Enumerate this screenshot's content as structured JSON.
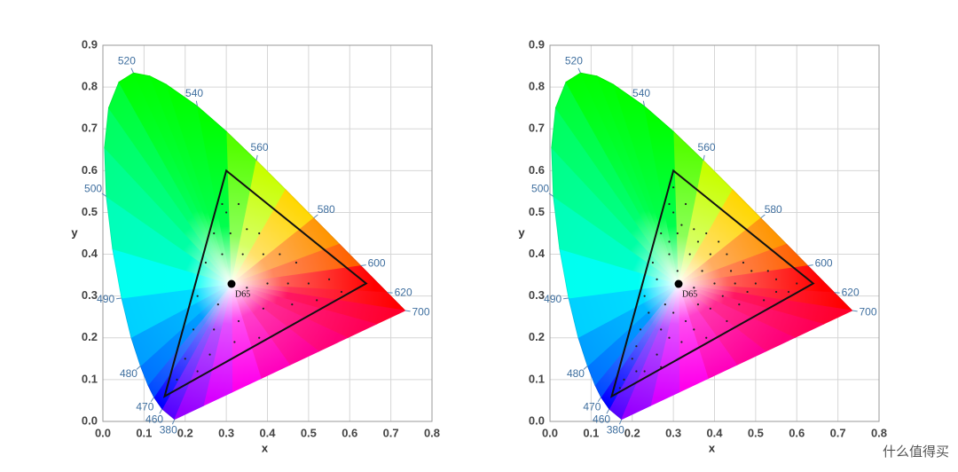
{
  "chart_data": [
    {
      "type": "chromaticity",
      "xlabel": "x",
      "ylabel": "y",
      "xlim": [
        0,
        0.8
      ],
      "ylim": [
        0,
        0.9
      ],
      "xticks": [
        {
          "value": 0,
          "label": "0.0"
        },
        0.1,
        0.2,
        0.3,
        0.4,
        0.5,
        0.6,
        0.7,
        0.8
      ],
      "yticks": [
        {
          "value": 0,
          "label": "0.0"
        },
        0.1,
        0.2,
        0.3,
        0.4,
        0.5,
        0.6,
        0.7,
        0.8,
        0.9
      ],
      "grid": true,
      "locus": {
        "x": [
          0.1741,
          0.144,
          0.1241,
          0.1096,
          0.0913,
          0.0687,
          0.0454,
          0.0235,
          0.0082,
          0.0039,
          0.0139,
          0.0389,
          0.0743,
          0.1142,
          0.1547,
          0.2296,
          0.3016,
          0.3731,
          0.4441,
          0.5125,
          0.5752,
          0.627,
          0.6915,
          0.7347
        ],
        "y": [
          0.005,
          0.0297,
          0.0578,
          0.0868,
          0.1327,
          0.2007,
          0.295,
          0.4127,
          0.5384,
          0.6548,
          0.7502,
          0.812,
          0.8338,
          0.8262,
          0.8059,
          0.7543,
          0.6923,
          0.6245,
          0.5547,
          0.4866,
          0.4242,
          0.3725,
          0.3083,
          0.2653
        ]
      },
      "wavelength_labels": {
        "labels": [
          "520",
          "540",
          "560",
          "580",
          "600",
          "620",
          "700",
          "500",
          "490",
          "480",
          "470",
          "460",
          "380"
        ],
        "x": [
          0.0743,
          0.2296,
          0.3731,
          0.5125,
          0.627,
          0.6915,
          0.7347,
          0.0082,
          0.0454,
          0.0913,
          0.1241,
          0.144,
          0.1741
        ],
        "y": [
          0.8338,
          0.7543,
          0.6245,
          0.4866,
          0.3725,
          0.3083,
          0.2653,
          0.5384,
          0.295,
          0.1327,
          0.0578,
          0.0297,
          0.005
        ]
      },
      "gamut": {
        "x": [
          0.64,
          0.3,
          0.15
        ],
        "y": [
          0.33,
          0.6,
          0.06
        ]
      },
      "white_point": {
        "label": "D65",
        "x": 0.3127,
        "y": 0.329
      },
      "points": {
        "x": [
          0.29,
          0.3,
          0.33,
          0.27,
          0.31,
          0.35,
          0.38,
          0.25,
          0.29,
          0.34,
          0.39,
          0.43,
          0.47,
          0.23,
          0.28,
          0.35,
          0.4,
          0.45,
          0.5,
          0.55,
          0.22,
          0.27,
          0.33,
          0.39,
          0.46,
          0.52,
          0.58,
          0.2,
          0.26,
          0.32,
          0.38,
          0.18,
          0.23
        ],
        "y": [
          0.52,
          0.5,
          0.52,
          0.45,
          0.45,
          0.46,
          0.45,
          0.38,
          0.4,
          0.4,
          0.4,
          0.4,
          0.38,
          0.3,
          0.28,
          0.32,
          0.33,
          0.33,
          0.33,
          0.34,
          0.22,
          0.22,
          0.24,
          0.27,
          0.28,
          0.29,
          0.31,
          0.15,
          0.16,
          0.19,
          0.2,
          0.1,
          0.12
        ]
      }
    },
    {
      "type": "chromaticity",
      "xlabel": "x",
      "ylabel": "y",
      "xlim": [
        0,
        0.8
      ],
      "ylim": [
        0,
        0.9
      ],
      "xticks": [
        {
          "value": 0,
          "label": "0.0"
        },
        0.1,
        0.2,
        0.3,
        0.4,
        0.5,
        0.6,
        0.7,
        0.8
      ],
      "yticks": [
        {
          "value": 0,
          "label": "0.0"
        },
        0.1,
        0.2,
        0.3,
        0.4,
        0.5,
        0.6,
        0.7,
        0.8,
        0.9
      ],
      "grid": true,
      "locus": {
        "x": [
          0.1741,
          0.144,
          0.1241,
          0.1096,
          0.0913,
          0.0687,
          0.0454,
          0.0235,
          0.0082,
          0.0039,
          0.0139,
          0.0389,
          0.0743,
          0.1142,
          0.1547,
          0.2296,
          0.3016,
          0.3731,
          0.4441,
          0.5125,
          0.5752,
          0.627,
          0.6915,
          0.7347
        ],
        "y": [
          0.005,
          0.0297,
          0.0578,
          0.0868,
          0.1327,
          0.2007,
          0.295,
          0.4127,
          0.5384,
          0.6548,
          0.7502,
          0.812,
          0.8338,
          0.8262,
          0.8059,
          0.7543,
          0.6923,
          0.6245,
          0.5547,
          0.4866,
          0.4242,
          0.3725,
          0.3083,
          0.2653
        ]
      },
      "wavelength_labels": {
        "labels": [
          "520",
          "540",
          "560",
          "580",
          "600",
          "620",
          "700",
          "500",
          "490",
          "480",
          "470",
          "460",
          "380"
        ],
        "x": [
          0.0743,
          0.2296,
          0.3731,
          0.5125,
          0.627,
          0.6915,
          0.7347,
          0.0082,
          0.0454,
          0.0913,
          0.1241,
          0.144,
          0.1741
        ],
        "y": [
          0.8338,
          0.7543,
          0.6245,
          0.4866,
          0.3725,
          0.3083,
          0.2653,
          0.5384,
          0.295,
          0.1327,
          0.0578,
          0.0297,
          0.005
        ]
      },
      "gamut": {
        "x": [
          0.64,
          0.3,
          0.15
        ],
        "y": [
          0.33,
          0.6,
          0.06
        ]
      },
      "white_point": {
        "label": "D65",
        "x": 0.3127,
        "y": 0.329
      },
      "points": {
        "x": [
          0.29,
          0.3,
          0.33,
          0.27,
          0.31,
          0.35,
          0.38,
          0.25,
          0.29,
          0.34,
          0.39,
          0.43,
          0.47,
          0.23,
          0.28,
          0.35,
          0.4,
          0.45,
          0.5,
          0.55,
          0.22,
          0.27,
          0.33,
          0.39,
          0.46,
          0.52,
          0.58,
          0.2,
          0.26,
          0.32,
          0.38,
          0.18,
          0.23,
          0.3,
          0.32,
          0.29,
          0.36,
          0.41,
          0.26,
          0.31,
          0.37,
          0.44,
          0.49,
          0.53,
          0.24,
          0.3,
          0.36,
          0.42,
          0.48,
          0.55,
          0.6,
          0.21,
          0.29,
          0.35,
          0.43,
          0.17,
          0.21,
          0.27
        ],
        "y": [
          0.52,
          0.5,
          0.52,
          0.45,
          0.45,
          0.46,
          0.45,
          0.38,
          0.4,
          0.4,
          0.4,
          0.4,
          0.38,
          0.3,
          0.28,
          0.32,
          0.33,
          0.33,
          0.33,
          0.34,
          0.22,
          0.22,
          0.24,
          0.27,
          0.28,
          0.29,
          0.31,
          0.15,
          0.16,
          0.19,
          0.2,
          0.1,
          0.12,
          0.56,
          0.47,
          0.43,
          0.43,
          0.43,
          0.34,
          0.36,
          0.36,
          0.36,
          0.36,
          0.36,
          0.26,
          0.26,
          0.28,
          0.3,
          0.31,
          0.31,
          0.33,
          0.18,
          0.2,
          0.22,
          0.24,
          0.08,
          0.12,
          0.13
        ]
      }
    }
  ],
  "watermark": "什么值得买"
}
